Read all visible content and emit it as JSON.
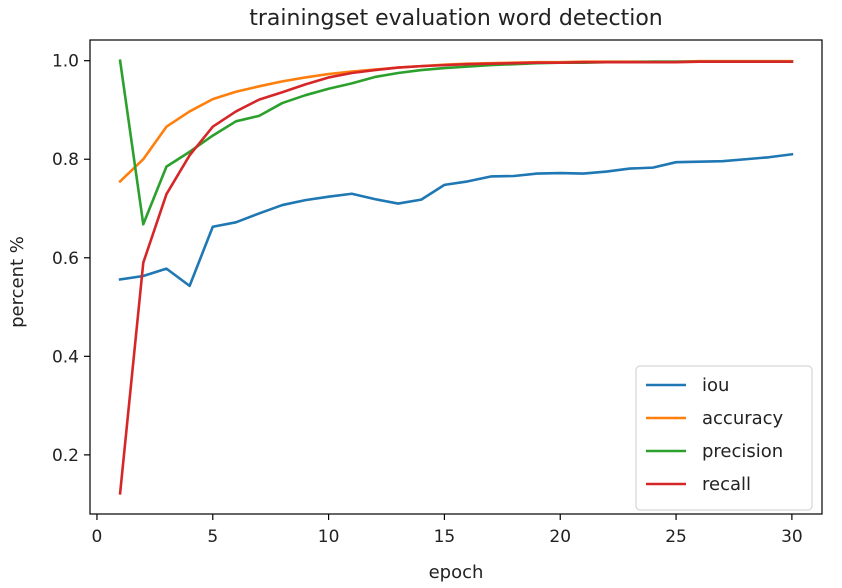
{
  "chart_data": {
    "type": "line",
    "title": "trainingset evaluation word detection",
    "xlabel": "epoch",
    "ylabel": "percent %",
    "xlim": [
      -0.3,
      31.3
    ],
    "ylim": [
      0.08,
      1.042
    ],
    "x_ticks": [
      0,
      5,
      10,
      15,
      20,
      25,
      30
    ],
    "x_tick_labels": [
      "0",
      "5",
      "10",
      "15",
      "20",
      "25",
      "30"
    ],
    "y_ticks": [
      0.2,
      0.4,
      0.6,
      0.8,
      1.0
    ],
    "y_tick_labels": [
      "0.2",
      "0.4",
      "0.6",
      "0.8",
      "1.0"
    ],
    "grid": false,
    "legend_position": "lower-right",
    "x": [
      1,
      2,
      3,
      4,
      5,
      6,
      7,
      8,
      9,
      10,
      11,
      12,
      13,
      14,
      15,
      16,
      17,
      18,
      19,
      20,
      21,
      22,
      23,
      24,
      25,
      26,
      27,
      28,
      29,
      30
    ],
    "series": [
      {
        "name": "iou",
        "color": "#1f77b4",
        "values": [
          0.556,
          0.563,
          0.578,
          0.543,
          0.663,
          0.672,
          0.69,
          0.707,
          0.717,
          0.724,
          0.73,
          0.719,
          0.71,
          0.718,
          0.748,
          0.755,
          0.765,
          0.766,
          0.771,
          0.772,
          0.771,
          0.775,
          0.781,
          0.783,
          0.794,
          0.795,
          0.796,
          0.8,
          0.804,
          0.81
        ]
      },
      {
        "name": "accuracy",
        "color": "#ff7f0e",
        "values": [
          0.755,
          0.8,
          0.866,
          0.897,
          0.922,
          0.937,
          0.948,
          0.958,
          0.966,
          0.973,
          0.978,
          0.982,
          0.986,
          0.989,
          0.992,
          0.994,
          0.995,
          0.996,
          0.997,
          0.997,
          0.998,
          0.998,
          0.998,
          0.998,
          0.998,
          0.999,
          0.999,
          0.999,
          0.999,
          0.999
        ]
      },
      {
        "name": "precision",
        "color": "#2ca02c",
        "values": [
          1.0,
          0.668,
          0.785,
          0.815,
          0.848,
          0.877,
          0.888,
          0.914,
          0.93,
          0.943,
          0.954,
          0.967,
          0.975,
          0.981,
          0.985,
          0.988,
          0.991,
          0.993,
          0.995,
          0.996,
          0.996,
          0.997,
          0.997,
          0.998,
          0.998,
          0.998,
          0.998,
          0.998,
          0.998,
          0.998
        ]
      },
      {
        "name": "recall",
        "color": "#d62728",
        "values": [
          0.122,
          0.59,
          0.729,
          0.808,
          0.866,
          0.897,
          0.921,
          0.936,
          0.952,
          0.966,
          0.975,
          0.981,
          0.986,
          0.989,
          0.991,
          0.993,
          0.994,
          0.995,
          0.996,
          0.996,
          0.997,
          0.997,
          0.997,
          0.997,
          0.997,
          0.998,
          0.998,
          0.998,
          0.998,
          0.998
        ]
      }
    ]
  }
}
